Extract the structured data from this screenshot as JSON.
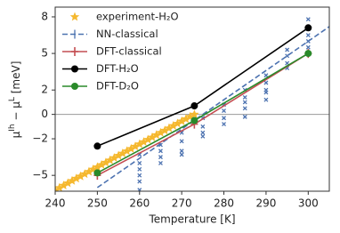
{
  "chart_data": {
    "type": "line",
    "xlabel": "Temperature [K]",
    "ylabel": [
      "μ",
      "Ih",
      " − μ",
      "L",
      " [meV]"
    ],
    "xlim": [
      240,
      305
    ],
    "xticks": [
      240,
      250,
      260,
      270,
      280,
      290,
      300
    ],
    "ylim": [
      -6.3,
      8.8
    ],
    "yticks": [
      {
        "value": -5,
        "label": "−5"
      },
      {
        "value": -2,
        "label": "−2"
      },
      0,
      2,
      5,
      8
    ],
    "zero_line": true,
    "legend": "upper-left",
    "series": [
      {
        "name": "experiment-H₂O",
        "color": "#f5b82e",
        "marker": "star",
        "linestyle": "none",
        "x": [
          240,
          241,
          242,
          243,
          244,
          245,
          246,
          247,
          248,
          249,
          250,
          251,
          252,
          253,
          254,
          255,
          256,
          257,
          258,
          259,
          260,
          261,
          262,
          263,
          264,
          265,
          266,
          267,
          268,
          269,
          270,
          271,
          272,
          273
        ],
        "values": [
          -6.2,
          -6.02,
          -5.83,
          -5.64,
          -5.45,
          -5.26,
          -5.08,
          -4.89,
          -4.7,
          -4.51,
          -4.32,
          -4.14,
          -3.95,
          -3.76,
          -3.57,
          -3.38,
          -3.2,
          -3.01,
          -2.82,
          -2.63,
          -2.44,
          -2.26,
          -2.07,
          -1.88,
          -1.69,
          -1.5,
          -1.32,
          -1.13,
          -0.94,
          -0.75,
          -0.56,
          -0.38,
          -0.19,
          0
        ]
      },
      {
        "name": "NN-classical",
        "color": "#4c72b0",
        "marker": "none",
        "linestyle": "dashed",
        "x": [
          250,
          260,
          270,
          280,
          290,
          300,
          305
        ],
        "values": [
          -6.0,
          -3.6,
          -1.2,
          1.2,
          3.6,
          6.0,
          7.2
        ],
        "samples": {
          "x": [
            260,
            260,
            260,
            260,
            260,
            260,
            265,
            265,
            265,
            265,
            270,
            270,
            270,
            270,
            275,
            275,
            275,
            275,
            280,
            280,
            280,
            280,
            285,
            285,
            285,
            285,
            285,
            290,
            290,
            290,
            290,
            290,
            295,
            295,
            295,
            295,
            300,
            300,
            300,
            300,
            300
          ],
          "values": [
            -3.3,
            -4.0,
            -4.5,
            -5.0,
            -5.5,
            -6.2,
            -2.5,
            -3.0,
            -3.5,
            -4.0,
            -1.5,
            -2.2,
            -3.0,
            -3.3,
            -0.3,
            -1.0,
            -1.5,
            -1.8,
            0.8,
            0.3,
            -0.3,
            -0.8,
            2.0,
            1.4,
            1.0,
            0.5,
            -0.2,
            3.2,
            2.6,
            2.0,
            1.8,
            1.2,
            5.3,
            4.8,
            4.2,
            3.8,
            7.8,
            7.0,
            6.5,
            6.0,
            5.5
          ]
        }
      },
      {
        "name": "DFT-classical",
        "color": "#c44e52",
        "marker": "plus",
        "linestyle": "solid",
        "x": [
          250,
          273,
          300
        ],
        "values": [
          -5.0,
          -0.8,
          5.0
        ]
      },
      {
        "name": "DFT-H₂O",
        "color": "#000000",
        "marker": "circle",
        "linestyle": "solid",
        "x": [
          250,
          273,
          300
        ],
        "values": [
          -2.6,
          0.7,
          7.1
        ]
      },
      {
        "name": "DFT-D₂O",
        "color": "#2a8a2a",
        "marker": "circle",
        "linestyle": "solid",
        "x": [
          250,
          273,
          300
        ],
        "values": [
          -4.8,
          -0.5,
          5.0
        ]
      }
    ]
  }
}
